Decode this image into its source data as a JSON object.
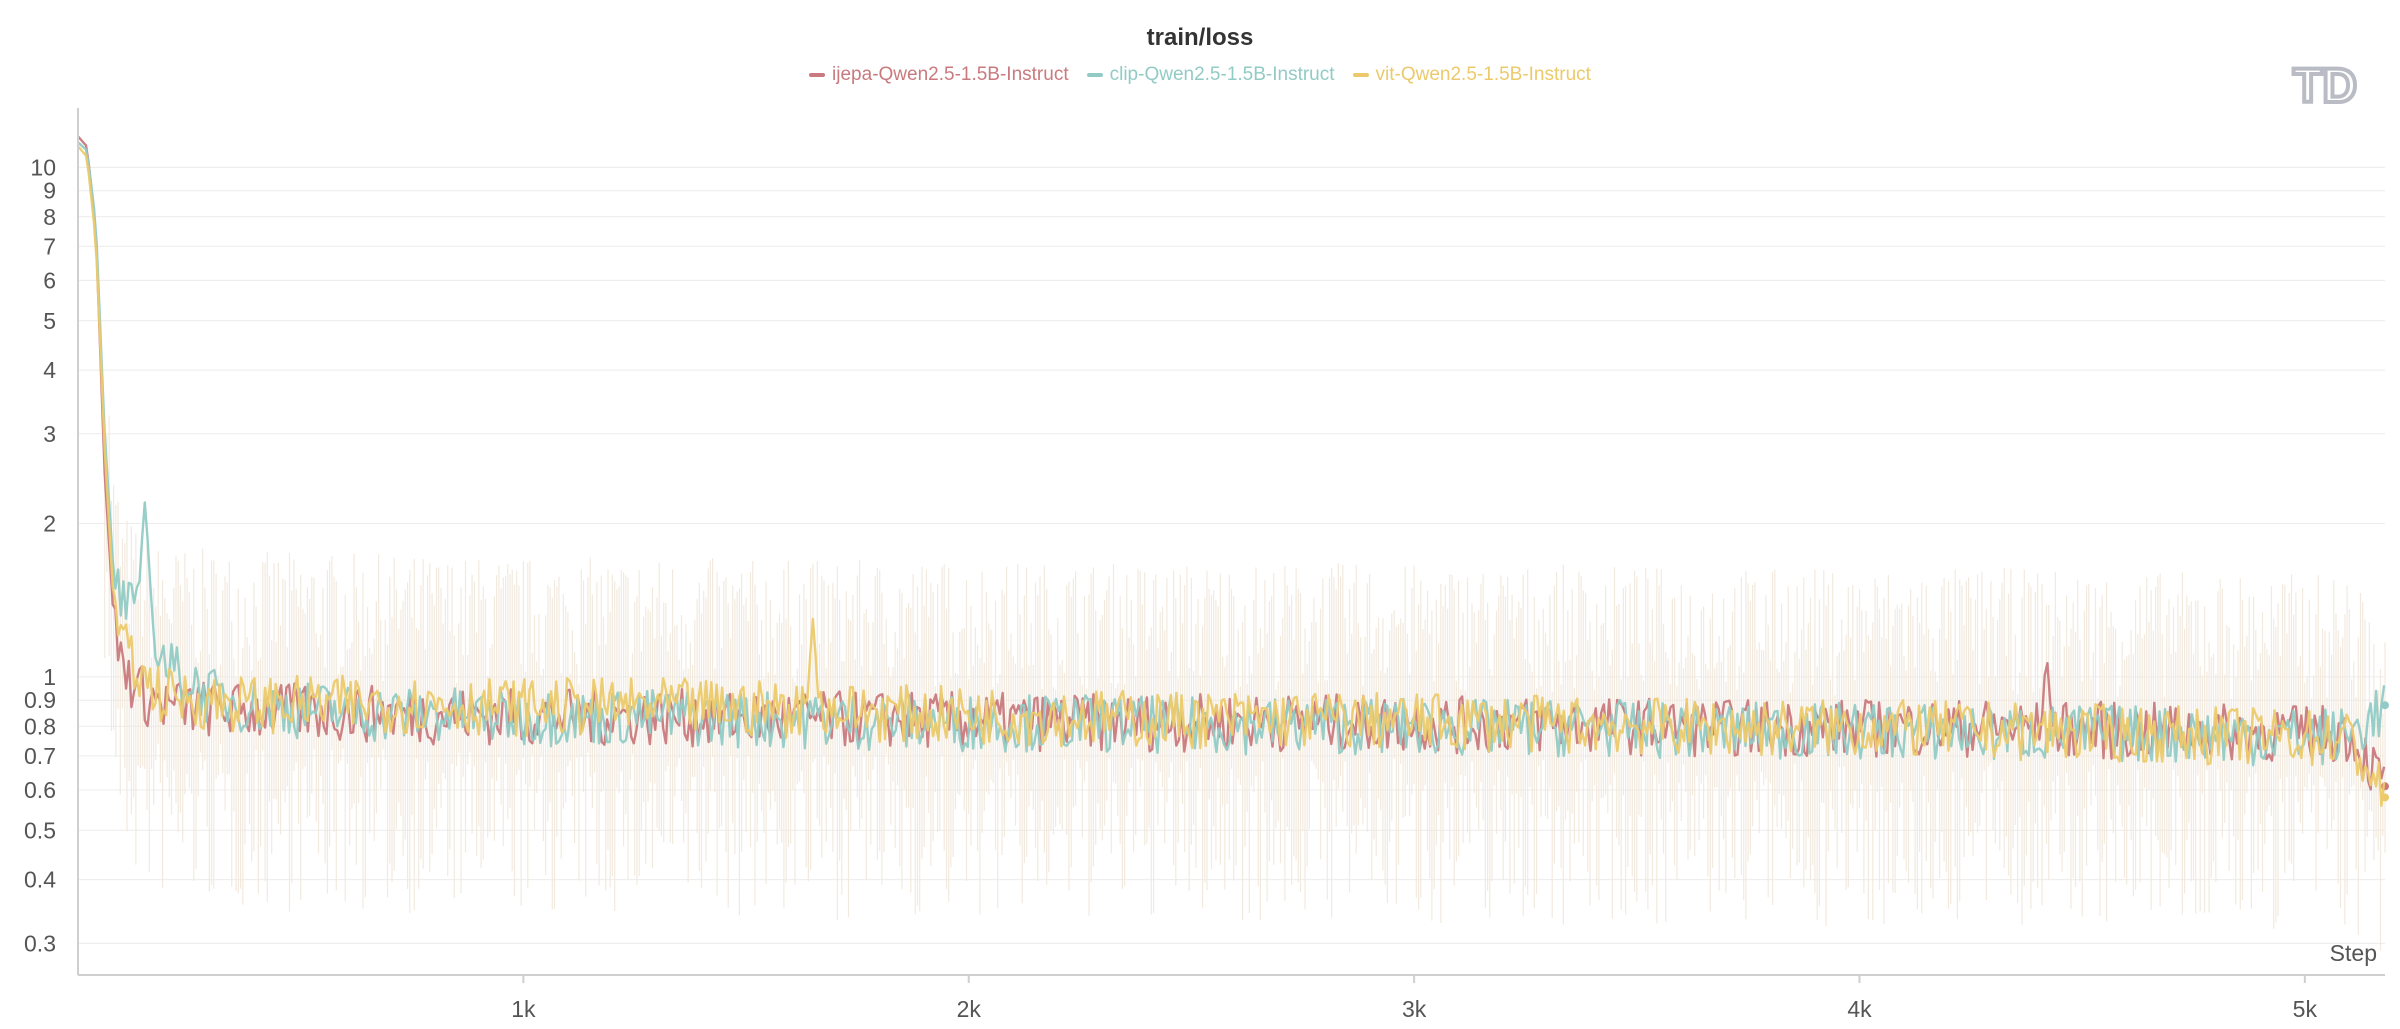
{
  "colors": {
    "ijepa": "#c97a7e",
    "clip": "#92cbc5",
    "vit": "#ecca6b",
    "grid": "#ececec",
    "axis": "#cfcfcf",
    "noise": "#f1e8dc"
  },
  "logo": {
    "icon": "td-logo-icon",
    "text": "TD"
  },
  "chart_data": {
    "type": "line",
    "title": "train/loss",
    "xlabel": "Step",
    "ylabel": "",
    "yscale": "log",
    "ylim": [
      0.26,
      12.5
    ],
    "xlim": [
      0,
      5180
    ],
    "x_ticks": [
      1000,
      2000,
      3000,
      4000,
      5000
    ],
    "x_tick_labels": [
      "1k",
      "2k",
      "3k",
      "4k",
      "5k"
    ],
    "y_ticks": [
      0.3,
      0.4,
      0.5,
      0.6,
      0.7,
      0.8,
      0.9,
      1,
      2,
      3,
      4,
      5,
      6,
      7,
      8,
      9,
      10
    ],
    "y_tick_labels": [
      "0.3",
      "0.4",
      "0.5",
      "0.6",
      "0.7",
      "0.8",
      "0.9",
      "1",
      "2",
      "3",
      "4",
      "5",
      "6",
      "7",
      "8",
      "9",
      "10"
    ],
    "grid": true,
    "legend": "top-center",
    "series": [
      {
        "name": "ijepa-Qwen2.5-1.5B-Instruct",
        "color": "#c97a7e",
        "x": [
          0,
          20,
          40,
          60,
          80,
          100,
          150,
          200,
          300,
          400,
          500,
          700,
          1000,
          1300,
          1600,
          1900,
          2200,
          2500,
          2800,
          3100,
          3400,
          3700,
          4000,
          4300,
          4600,
          4900,
          5100,
          5180
        ],
        "y": [
          11.5,
          11.0,
          7.5,
          2.5,
          1.3,
          1.05,
          0.92,
          0.88,
          0.87,
          0.86,
          0.86,
          0.85,
          0.84,
          0.84,
          0.83,
          0.83,
          0.82,
          0.82,
          0.82,
          0.81,
          0.81,
          0.8,
          0.8,
          0.8,
          0.79,
          0.78,
          0.78,
          0.61
        ]
      },
      {
        "name": "clip-Qwen2.5-1.5B-Instruct",
        "color": "#92cbc5",
        "x": [
          0,
          20,
          40,
          60,
          80,
          100,
          150,
          200,
          300,
          400,
          500,
          700,
          1000,
          1300,
          1600,
          1900,
          2200,
          2500,
          2800,
          3100,
          3400,
          3700,
          4000,
          4300,
          4600,
          4900,
          5100,
          5180
        ],
        "y": [
          11.2,
          10.8,
          7.8,
          3.0,
          1.6,
          1.4,
          1.3,
          1.05,
          0.92,
          0.88,
          0.87,
          0.85,
          0.84,
          0.84,
          0.83,
          0.82,
          0.82,
          0.81,
          0.81,
          0.8,
          0.8,
          0.79,
          0.79,
          0.78,
          0.78,
          0.77,
          0.77,
          0.88
        ]
      },
      {
        "name": "vit-Qwen2.5-1.5B-Instruct",
        "color": "#ecca6b",
        "x": [
          0,
          20,
          40,
          60,
          80,
          100,
          150,
          200,
          300,
          400,
          500,
          700,
          1000,
          1300,
          1600,
          1900,
          2200,
          2500,
          2800,
          3100,
          3400,
          3700,
          4000,
          4300,
          4600,
          4900,
          5100,
          5180
        ],
        "y": [
          11.0,
          10.5,
          7.2,
          2.8,
          1.4,
          1.15,
          0.98,
          0.92,
          0.9,
          0.89,
          0.89,
          0.89,
          0.88,
          0.88,
          0.87,
          0.85,
          0.84,
          0.83,
          0.83,
          0.82,
          0.81,
          0.8,
          0.8,
          0.79,
          0.78,
          0.77,
          0.76,
          0.58
        ]
      }
    ],
    "annotations": [
      {
        "series": "clip-Qwen2.5-1.5B-Instruct",
        "x": 150,
        "y": 2.2,
        "note": "spike"
      },
      {
        "series": "vit-Qwen2.5-1.5B-Instruct",
        "x": 1650,
        "y": 1.3,
        "note": "spike"
      },
      {
        "series": "ijepa-Qwen2.5-1.5B-Instruct",
        "x": 4420,
        "y": 1.12,
        "note": "spike"
      }
    ]
  }
}
